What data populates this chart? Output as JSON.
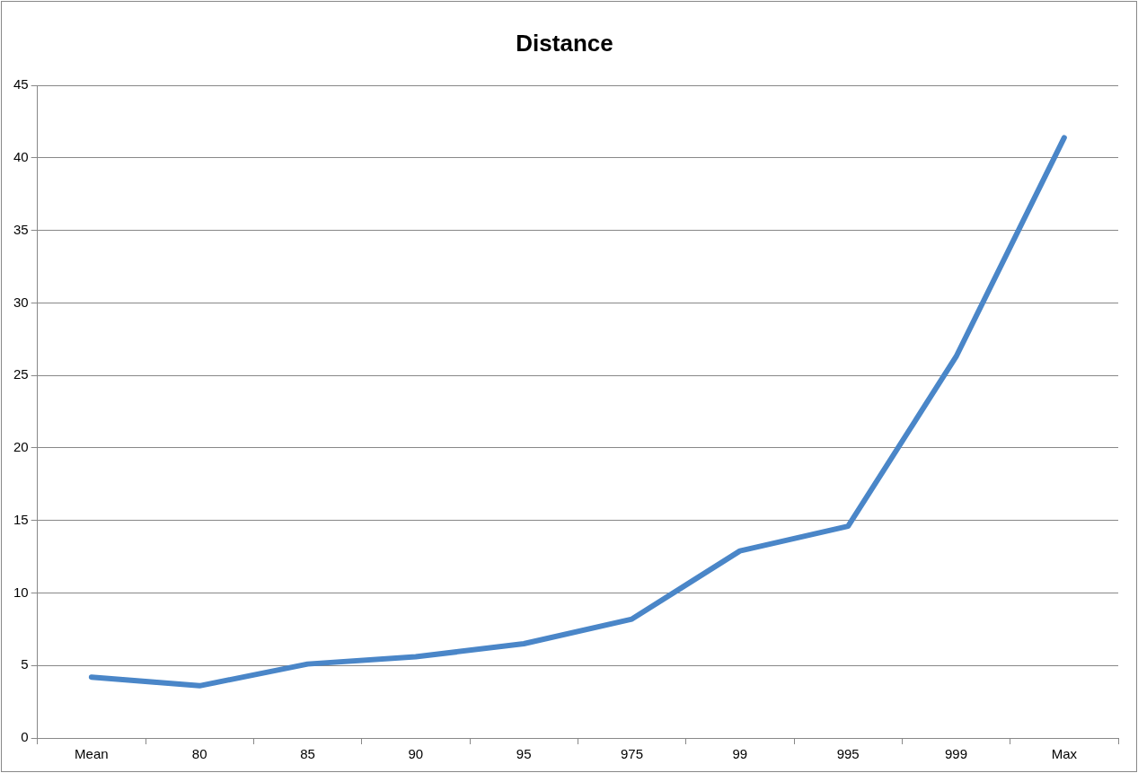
{
  "chart_data": {
    "type": "line",
    "title": "Distance",
    "categories": [
      "Mean",
      "80",
      "85",
      "90",
      "95",
      "975",
      "99",
      "995",
      "999",
      "Max"
    ],
    "series": [
      {
        "color": "#4a86c8",
        "values": [
          4.2,
          3.6,
          5.1,
          5.6,
          6.5,
          8.2,
          12.9,
          14.6,
          26.3,
          41.4
        ]
      }
    ],
    "ylim": [
      0,
      45
    ],
    "yticks": [
      0,
      5,
      10,
      15,
      20,
      25,
      30,
      35,
      40,
      45
    ],
    "grid": "y",
    "legend": false,
    "marker": "none",
    "line_style": "solid"
  }
}
